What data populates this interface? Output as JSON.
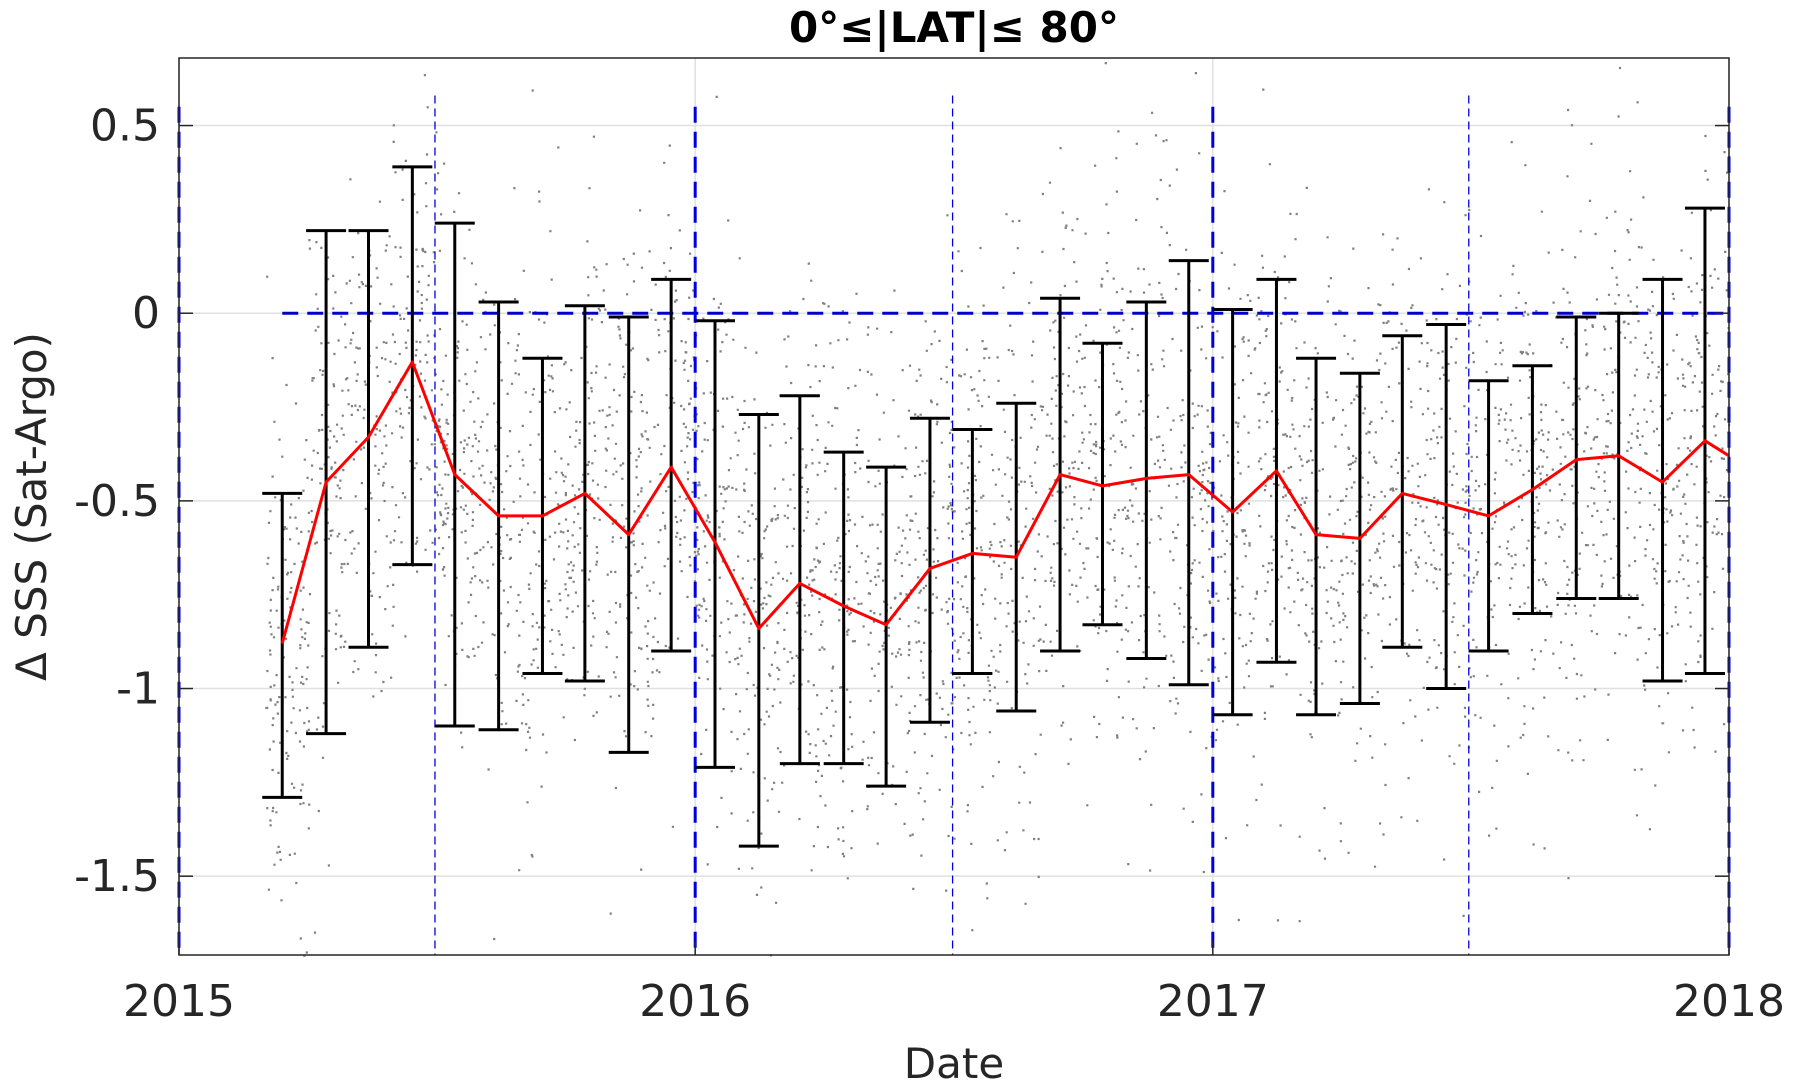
{
  "chart_data": {
    "type": "line",
    "title": "0°≤|LAT|≤ 80°",
    "xlabel": "Date",
    "ylabel": "Δ SSS (Sat-Argo)",
    "xlim": [
      "2015-01-01",
      "2018-01-01"
    ],
    "ylim": [
      -1.71,
      0.68
    ],
    "x_ticks": [
      {
        "value": "2015-01-01",
        "label": "2015"
      },
      {
        "value": "2016-01-01",
        "label": "2016"
      },
      {
        "value": "2017-01-01",
        "label": "2017"
      },
      {
        "value": "2018-01-01",
        "label": "2018"
      }
    ],
    "y_ticks": [
      {
        "value": 0.5,
        "label": "0.5"
      },
      {
        "value": 0,
        "label": "0"
      },
      {
        "value": -0.5,
        "label": "-0.5"
      },
      {
        "value": -1,
        "label": "-1"
      },
      {
        "value": -1.5,
        "label": "-1.5"
      }
    ],
    "grid": true,
    "reference_lines": {
      "horizontal_zero": {
        "value": 0,
        "start": "2015-03-15",
        "color": "#0000cc"
      },
      "year_lines": [
        "2015-01-01",
        "2016-01-01",
        "2017-01-01",
        "2018-01-01"
      ],
      "midyear_lines": [
        "2015-07-01",
        "2016-07-01",
        "2017-07-01"
      ],
      "color": "#0000dd"
    },
    "series": [
      {
        "type": "line",
        "color": "#ff0000",
        "x": [
          "2015-03-15",
          "2015-04-15",
          "2015-05-15",
          "2015-06-15",
          "2015-07-15",
          "2015-08-15",
          "2015-09-15",
          "2015-10-15",
          "2015-11-15",
          "2015-12-15",
          "2016-01-15",
          "2016-02-15",
          "2016-03-15",
          "2016-04-15",
          "2016-05-15",
          "2016-06-15",
          "2016-07-15",
          "2016-08-15",
          "2016-09-15",
          "2016-10-15",
          "2016-11-15",
          "2016-12-15",
          "2017-01-15",
          "2017-02-15",
          "2017-03-15",
          "2017-04-15",
          "2017-05-15",
          "2017-06-15",
          "2017-07-15",
          "2017-08-15",
          "2017-09-15",
          "2017-10-15",
          "2017-11-15",
          "2017-12-15",
          "2018-01-01"
        ],
        "values": [
          -0.88,
          -0.45,
          -0.33,
          -0.13,
          -0.43,
          -0.54,
          -0.54,
          -0.48,
          -0.59,
          -0.41,
          -0.61,
          -0.84,
          -0.72,
          -0.78,
          -0.83,
          -0.68,
          -0.64,
          -0.65,
          -0.43,
          -0.46,
          -0.44,
          -0.43,
          -0.53,
          -0.42,
          -0.59,
          -0.6,
          -0.48,
          -0.51,
          -0.54,
          -0.47,
          -0.39,
          -0.38,
          -0.45,
          -0.34,
          -0.38
        ]
      },
      {
        "type": "errorbar",
        "color": "#000000",
        "x": [
          "2015-03-15",
          "2015-04-15",
          "2015-05-15",
          "2015-06-15",
          "2015-07-15",
          "2015-08-15",
          "2015-09-15",
          "2015-10-15",
          "2015-11-15",
          "2015-12-15",
          "2016-01-15",
          "2016-02-15",
          "2016-03-15",
          "2016-04-15",
          "2016-05-15",
          "2016-06-15",
          "2016-07-15",
          "2016-08-15",
          "2016-09-15",
          "2016-10-15",
          "2016-11-15",
          "2016-12-15",
          "2017-01-15",
          "2017-02-15",
          "2017-03-15",
          "2017-04-15",
          "2017-05-15",
          "2017-06-15",
          "2017-07-15",
          "2017-08-15",
          "2017-09-15",
          "2017-10-15",
          "2017-11-15",
          "2017-12-15"
        ],
        "upper": [
          -0.48,
          0.22,
          0.22,
          0.39,
          0.24,
          0.03,
          -0.12,
          0.02,
          -0.01,
          0.09,
          -0.02,
          -0.27,
          -0.22,
          -0.37,
          -0.41,
          -0.28,
          -0.31,
          -0.24,
          0.04,
          -0.08,
          0.03,
          0.14,
          0.01,
          0.09,
          -0.12,
          -0.16,
          -0.06,
          -0.03,
          -0.18,
          -0.14,
          -0.01,
          -0.0,
          0.09,
          0.28
        ],
        "lower": [
          -1.29,
          -1.12,
          -0.89,
          -0.67,
          -1.1,
          -1.11,
          -0.96,
          -0.98,
          -1.17,
          -0.9,
          -1.21,
          -1.42,
          -1.2,
          -1.2,
          -1.26,
          -1.09,
          -0.96,
          -1.06,
          -0.9,
          -0.83,
          -0.92,
          -0.99,
          -1.07,
          -0.93,
          -1.07,
          -1.04,
          -0.89,
          -1.0,
          -0.9,
          -0.8,
          -0.76,
          -0.76,
          -0.98,
          -0.96
        ]
      }
    ],
    "scatter_background": {
      "description_color": "#808080",
      "monthly_density_center": [
        -0.88,
        -0.45,
        -0.33,
        -0.13,
        -0.43,
        -0.54,
        -0.54,
        -0.48,
        -0.59,
        -0.41,
        -0.61,
        -0.84,
        -0.72,
        -0.78,
        -0.83,
        -0.68,
        -0.64,
        -0.65,
        -0.43,
        -0.46,
        -0.44,
        -0.43,
        -0.53,
        -0.42,
        -0.59,
        -0.6,
        -0.48,
        -0.51,
        -0.54,
        -0.47,
        -0.39,
        -0.38,
        -0.45,
        -0.34,
        -0.38
      ]
    }
  }
}
